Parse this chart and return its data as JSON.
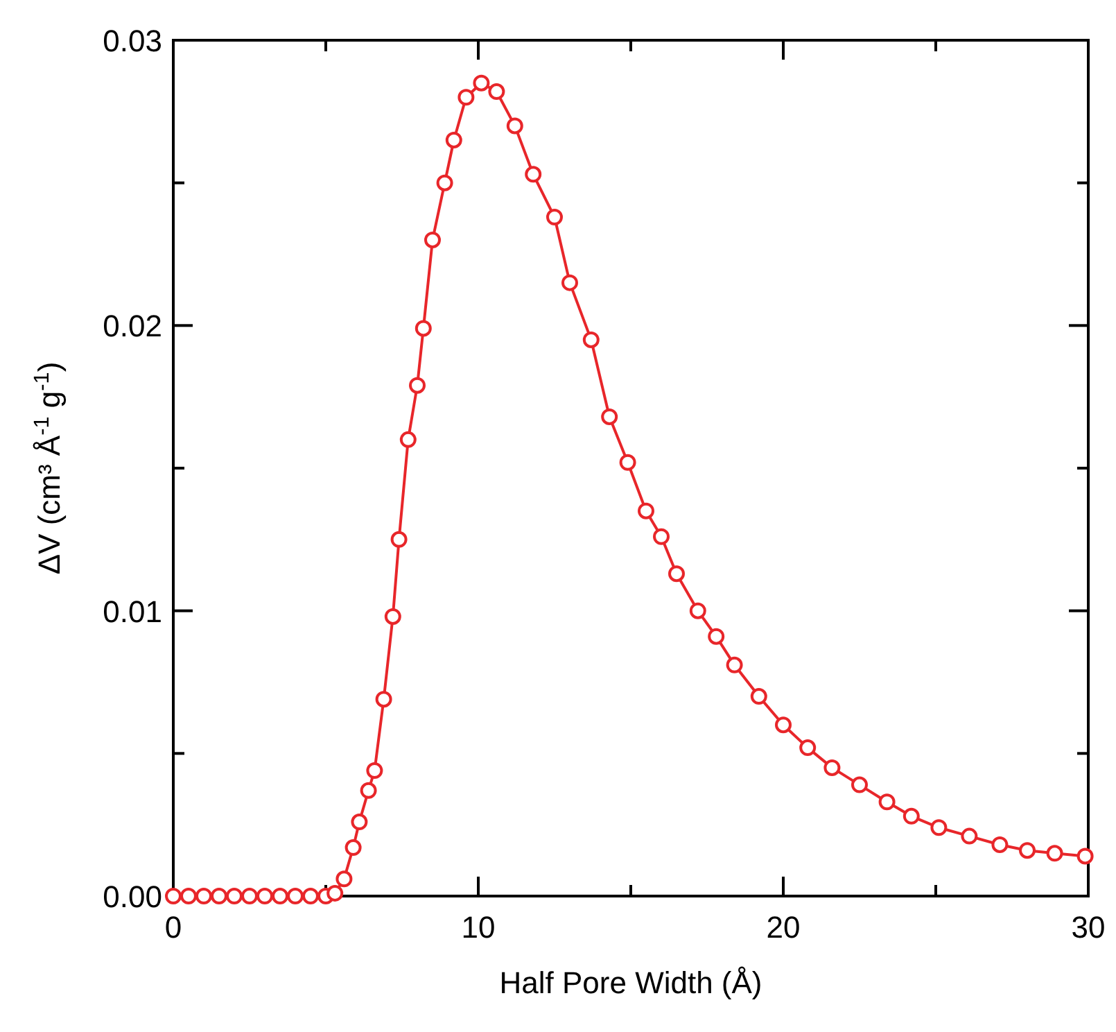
{
  "chart_data": {
    "type": "line",
    "xlabel": "Half Pore Width (Å)",
    "ylabel": "ΔV (cm³ Å$^{-1}$ g$^{-1}$)",
    "xlim": [
      0,
      30
    ],
    "ylim": [
      0,
      0.03
    ],
    "xticks": [
      0,
      {
        "value": 5,
        "label": null
      },
      10,
      {
        "value": 15,
        "label": null
      },
      20,
      {
        "value": 25,
        "label": null
      },
      30
    ],
    "yticks": [
      {
        "value": 0,
        "label": "0.00"
      },
      {
        "value": 0.005,
        "label": null
      },
      {
        "value": 0.01,
        "label": "0.01"
      },
      {
        "value": 0.015,
        "label": null
      },
      {
        "value": 0.02,
        "label": "0.02"
      },
      {
        "value": 0.025,
        "label": null
      },
      {
        "value": 0.03,
        "label": "0.03"
      }
    ],
    "marker": "circle",
    "line_style": "solid",
    "grid": false,
    "series": [
      {
        "color": "#e8262a",
        "x": [
          0,
          0.5,
          1,
          1.5,
          2,
          2.5,
          3,
          3.5,
          4,
          4.5,
          5,
          5.3,
          5.6,
          5.9,
          6.1,
          6.4,
          6.6,
          6.9,
          7.2,
          7.4,
          7.7,
          8.0,
          8.2,
          8.5,
          8.9,
          9.2,
          9.6,
          10.1,
          10.6,
          11.2,
          11.8,
          12.5,
          13.0,
          13.7,
          14.3,
          14.9,
          15.5,
          16.0,
          16.5,
          17.2,
          17.8,
          18.4,
          19.2,
          20.0,
          20.8,
          21.6,
          22.5,
          23.4,
          24.2,
          25.1,
          26.1,
          27.1,
          28.0,
          28.9,
          29.9
        ],
        "values": [
          0,
          0,
          0,
          0,
          0,
          0,
          0,
          0,
          0,
          0,
          0,
          0.0001,
          0.0006,
          0.0017,
          0.0026,
          0.0037,
          0.0044,
          0.0069,
          0.0098,
          0.0125,
          0.016,
          0.0179,
          0.0199,
          0.023,
          0.025,
          0.0265,
          0.028,
          0.0285,
          0.0282,
          0.027,
          0.0253,
          0.0238,
          0.0215,
          0.0195,
          0.0168,
          0.0152,
          0.0135,
          0.0126,
          0.0113,
          0.01,
          0.0091,
          0.0081,
          0.007,
          0.006,
          0.0052,
          0.0045,
          0.0039,
          0.0033,
          0.0028,
          0.0024,
          0.0021,
          0.0018,
          0.0016,
          0.0015,
          0.0014
        ]
      }
    ]
  }
}
